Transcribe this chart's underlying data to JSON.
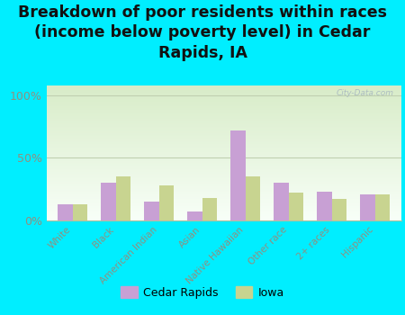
{
  "title": "Breakdown of poor residents within races\n(income below poverty level) in Cedar\nRapids, IA",
  "categories": [
    "White",
    "Black",
    "American Indian",
    "Asian",
    "Native Hawaiian",
    "Other race",
    "2+ races",
    "Hispanic"
  ],
  "cedar_rapids": [
    13,
    30,
    15,
    7,
    72,
    30,
    23,
    21
  ],
  "iowa": [
    13,
    35,
    28,
    18,
    35,
    22,
    17,
    21
  ],
  "cedar_rapids_color": "#c8a0d4",
  "iowa_color": "#c8d490",
  "background_outer": "#00eeff",
  "background_top": "#f8fff8",
  "background_bottom": "#d8ecc8",
  "grid_color": "#c0d0b0",
  "yticks": [
    0,
    50,
    100
  ],
  "ylabels": [
    "0%",
    "50%",
    "100%"
  ],
  "ylim": [
    0,
    108
  ],
  "bar_width": 0.35,
  "title_fontsize": 12.5,
  "watermark": "City-Data.com",
  "legend_labels": [
    "Cedar Rapids",
    "Iowa"
  ],
  "tick_color": "#909080",
  "label_color": "#909080"
}
